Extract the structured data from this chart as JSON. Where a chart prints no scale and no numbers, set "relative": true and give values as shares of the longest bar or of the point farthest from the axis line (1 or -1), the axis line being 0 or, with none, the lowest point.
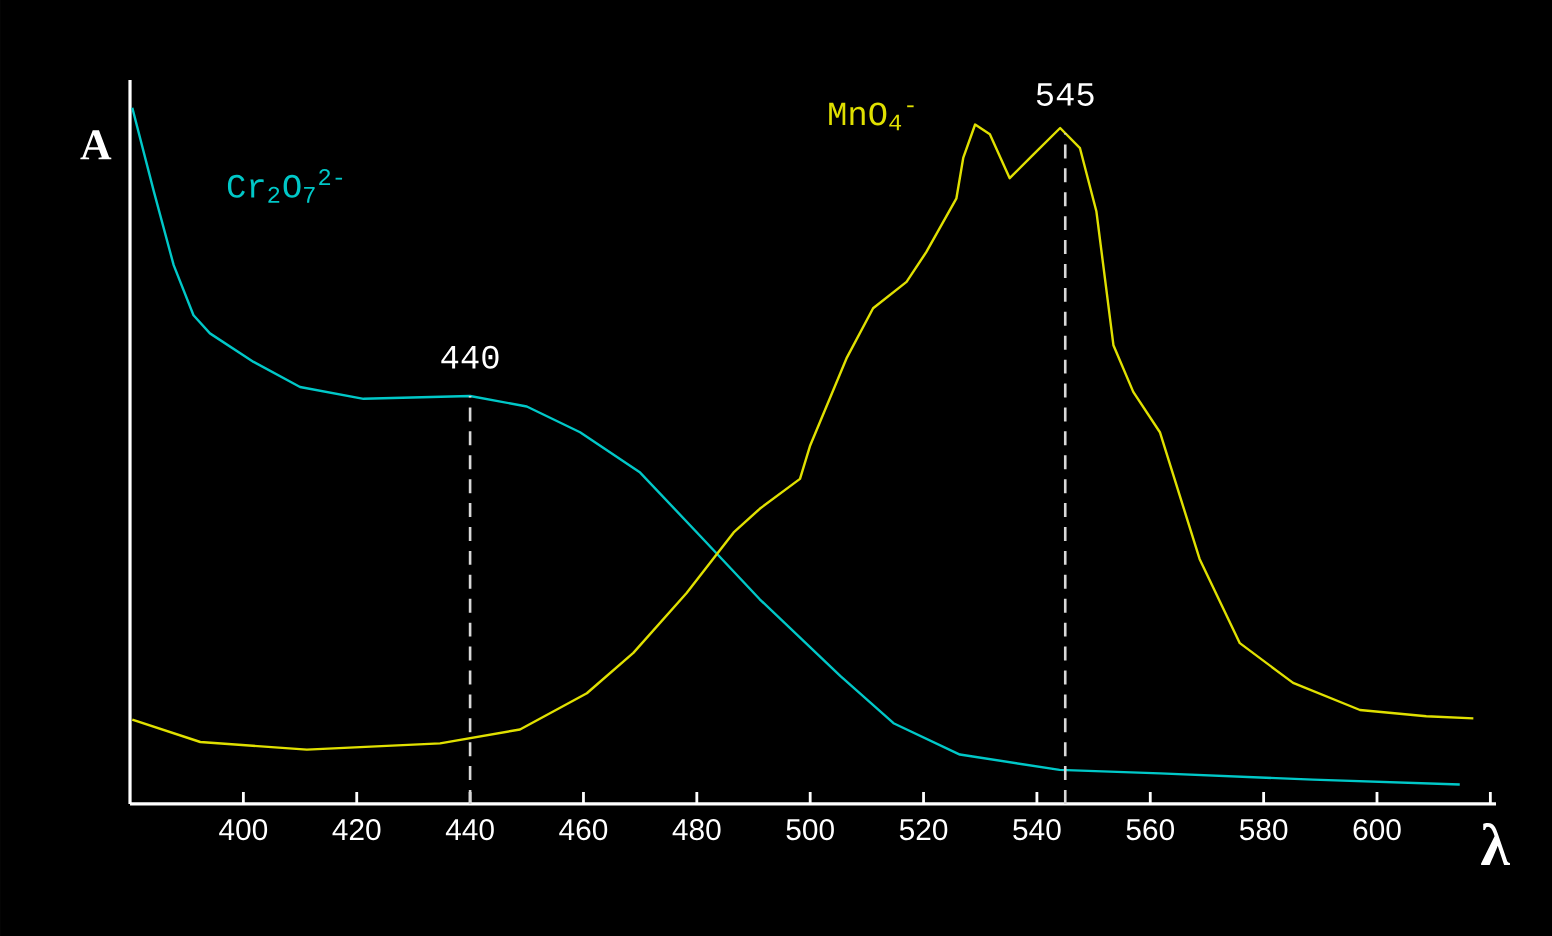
{
  "chart_data": {
    "type": "line",
    "relative": true,
    "xlabel": "λ",
    "ylabel": "A",
    "xlim": [
      380,
      621
    ],
    "xticks": [
      400,
      420,
      440,
      460,
      480,
      500,
      520,
      540,
      560,
      580,
      600,
      {
        "value": 620,
        "label": null
      }
    ],
    "series": [
      {
        "name": "Cr$_{2}$O$_{7}$$^{2-}$",
        "color": "#00c8c8",
        "x": [
          380.4,
          384.2,
          387.7,
          391.2,
          394.1,
          401.8,
          410,
          421.2,
          440,
          450,
          459.4,
          470,
          480.6,
          491.1,
          505.3,
          514.7,
          526.4,
          544,
          561.7,
          588.7,
          614.6
        ],
        "values": [
          1.0,
          0.88,
          0.774,
          0.702,
          0.676,
          0.635,
          0.599,
          0.582,
          0.586,
          0.571,
          0.534,
          0.476,
          0.385,
          0.294,
          0.184,
          0.116,
          0.071,
          0.049,
          0.044,
          0.035,
          0.028
        ]
      },
      {
        "name": "MnO$_{4}$$^{-}$",
        "color": "#e0e000",
        "x": [
          380.4,
          392.4,
          411.2,
          434.7,
          448.8,
          460.6,
          468.8,
          478.2,
          486.5,
          491.1,
          498.2,
          500,
          506.4,
          511.1,
          517,
          520.5,
          525.8,
          527,
          529.1,
          531.7,
          535.2,
          539.4,
          544.1,
          547.6,
          550.5,
          553.5,
          557,
          561.7,
          568.7,
          575.8,
          585.2,
          597,
          608.7,
          617
        ],
        "values": [
          0.121,
          0.089,
          0.078,
          0.087,
          0.107,
          0.159,
          0.217,
          0.303,
          0.39,
          0.424,
          0.467,
          0.515,
          0.64,
          0.712,
          0.75,
          0.793,
          0.87,
          0.928,
          0.976,
          0.962,
          0.899,
          0.933,
          0.971,
          0.942,
          0.851,
          0.659,
          0.592,
          0.534,
          0.352,
          0.231,
          0.174,
          0.135,
          0.126,
          0.123
        ]
      }
    ],
    "ref_lines": [
      {
        "axis": "x",
        "value": 440,
        "label": "440",
        "line_style": "dashed",
        "color": "#d8d8d8"
      },
      {
        "axis": "x",
        "value": 545,
        "label": "545",
        "line_style": "dashed",
        "color": "#d8d8d8"
      }
    ],
    "line_style": "solid",
    "marker": "none",
    "legend": false,
    "grid": false
  }
}
